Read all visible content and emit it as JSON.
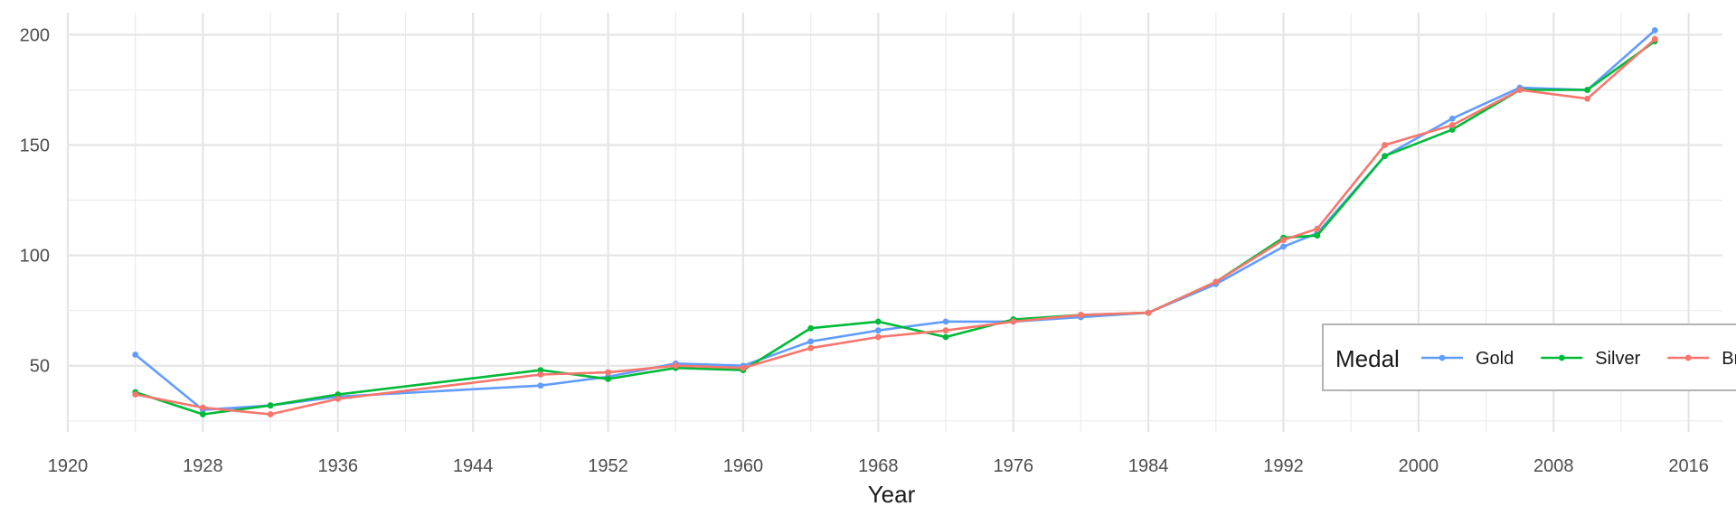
{
  "chart_data": {
    "type": "line",
    "title": "",
    "xlabel": "Year",
    "ylabel": "",
    "xlim": [
      1920,
      2018
    ],
    "ylim": [
      20,
      210
    ],
    "x_ticks": [
      1920,
      1928,
      1936,
      1944,
      1952,
      1960,
      1968,
      1976,
      1984,
      1992,
      2000,
      2008,
      2016
    ],
    "y_ticks": [
      50,
      100,
      150,
      200
    ],
    "grid": true,
    "legend": {
      "title": "Medal",
      "position": "bottom-right"
    },
    "series": [
      {
        "name": "Gold",
        "color": "#619CFF",
        "x": [
          1924,
          1928,
          1932,
          1936,
          1948,
          1952,
          1956,
          1960,
          1964,
          1968,
          1972,
          1976,
          1980,
          1984,
          1988,
          1992,
          1994,
          1998,
          2002,
          2006,
          2010,
          2014
        ],
        "values": [
          55,
          30,
          32,
          36,
          41,
          45,
          51,
          50,
          61,
          66,
          70,
          70,
          72,
          74,
          87,
          104,
          110,
          145,
          162,
          176,
          175,
          202
        ]
      },
      {
        "name": "Silver",
        "color": "#00BA38",
        "x": [
          1924,
          1928,
          1932,
          1936,
          1948,
          1952,
          1956,
          1960,
          1964,
          1968,
          1972,
          1976,
          1980,
          1984,
          1988,
          1992,
          1994,
          1998,
          2002,
          2006,
          2010,
          2014
        ],
        "values": [
          38,
          28,
          32,
          37,
          48,
          44,
          49,
          48,
          67,
          70,
          63,
          71,
          73,
          74,
          88,
          108,
          109,
          145,
          157,
          175,
          175,
          197
        ]
      },
      {
        "name": "Bronze",
        "color": "#F8766D",
        "x": [
          1924,
          1928,
          1932,
          1936,
          1948,
          1952,
          1956,
          1960,
          1964,
          1968,
          1972,
          1976,
          1980,
          1984,
          1988,
          1992,
          1994,
          1998,
          2002,
          2006,
          2010,
          2014
        ],
        "values": [
          37,
          31,
          28,
          35,
          46,
          47,
          50,
          49,
          58,
          63,
          66,
          70,
          73,
          74,
          88,
          107,
          112,
          150,
          159,
          175,
          171,
          198
        ]
      }
    ]
  }
}
